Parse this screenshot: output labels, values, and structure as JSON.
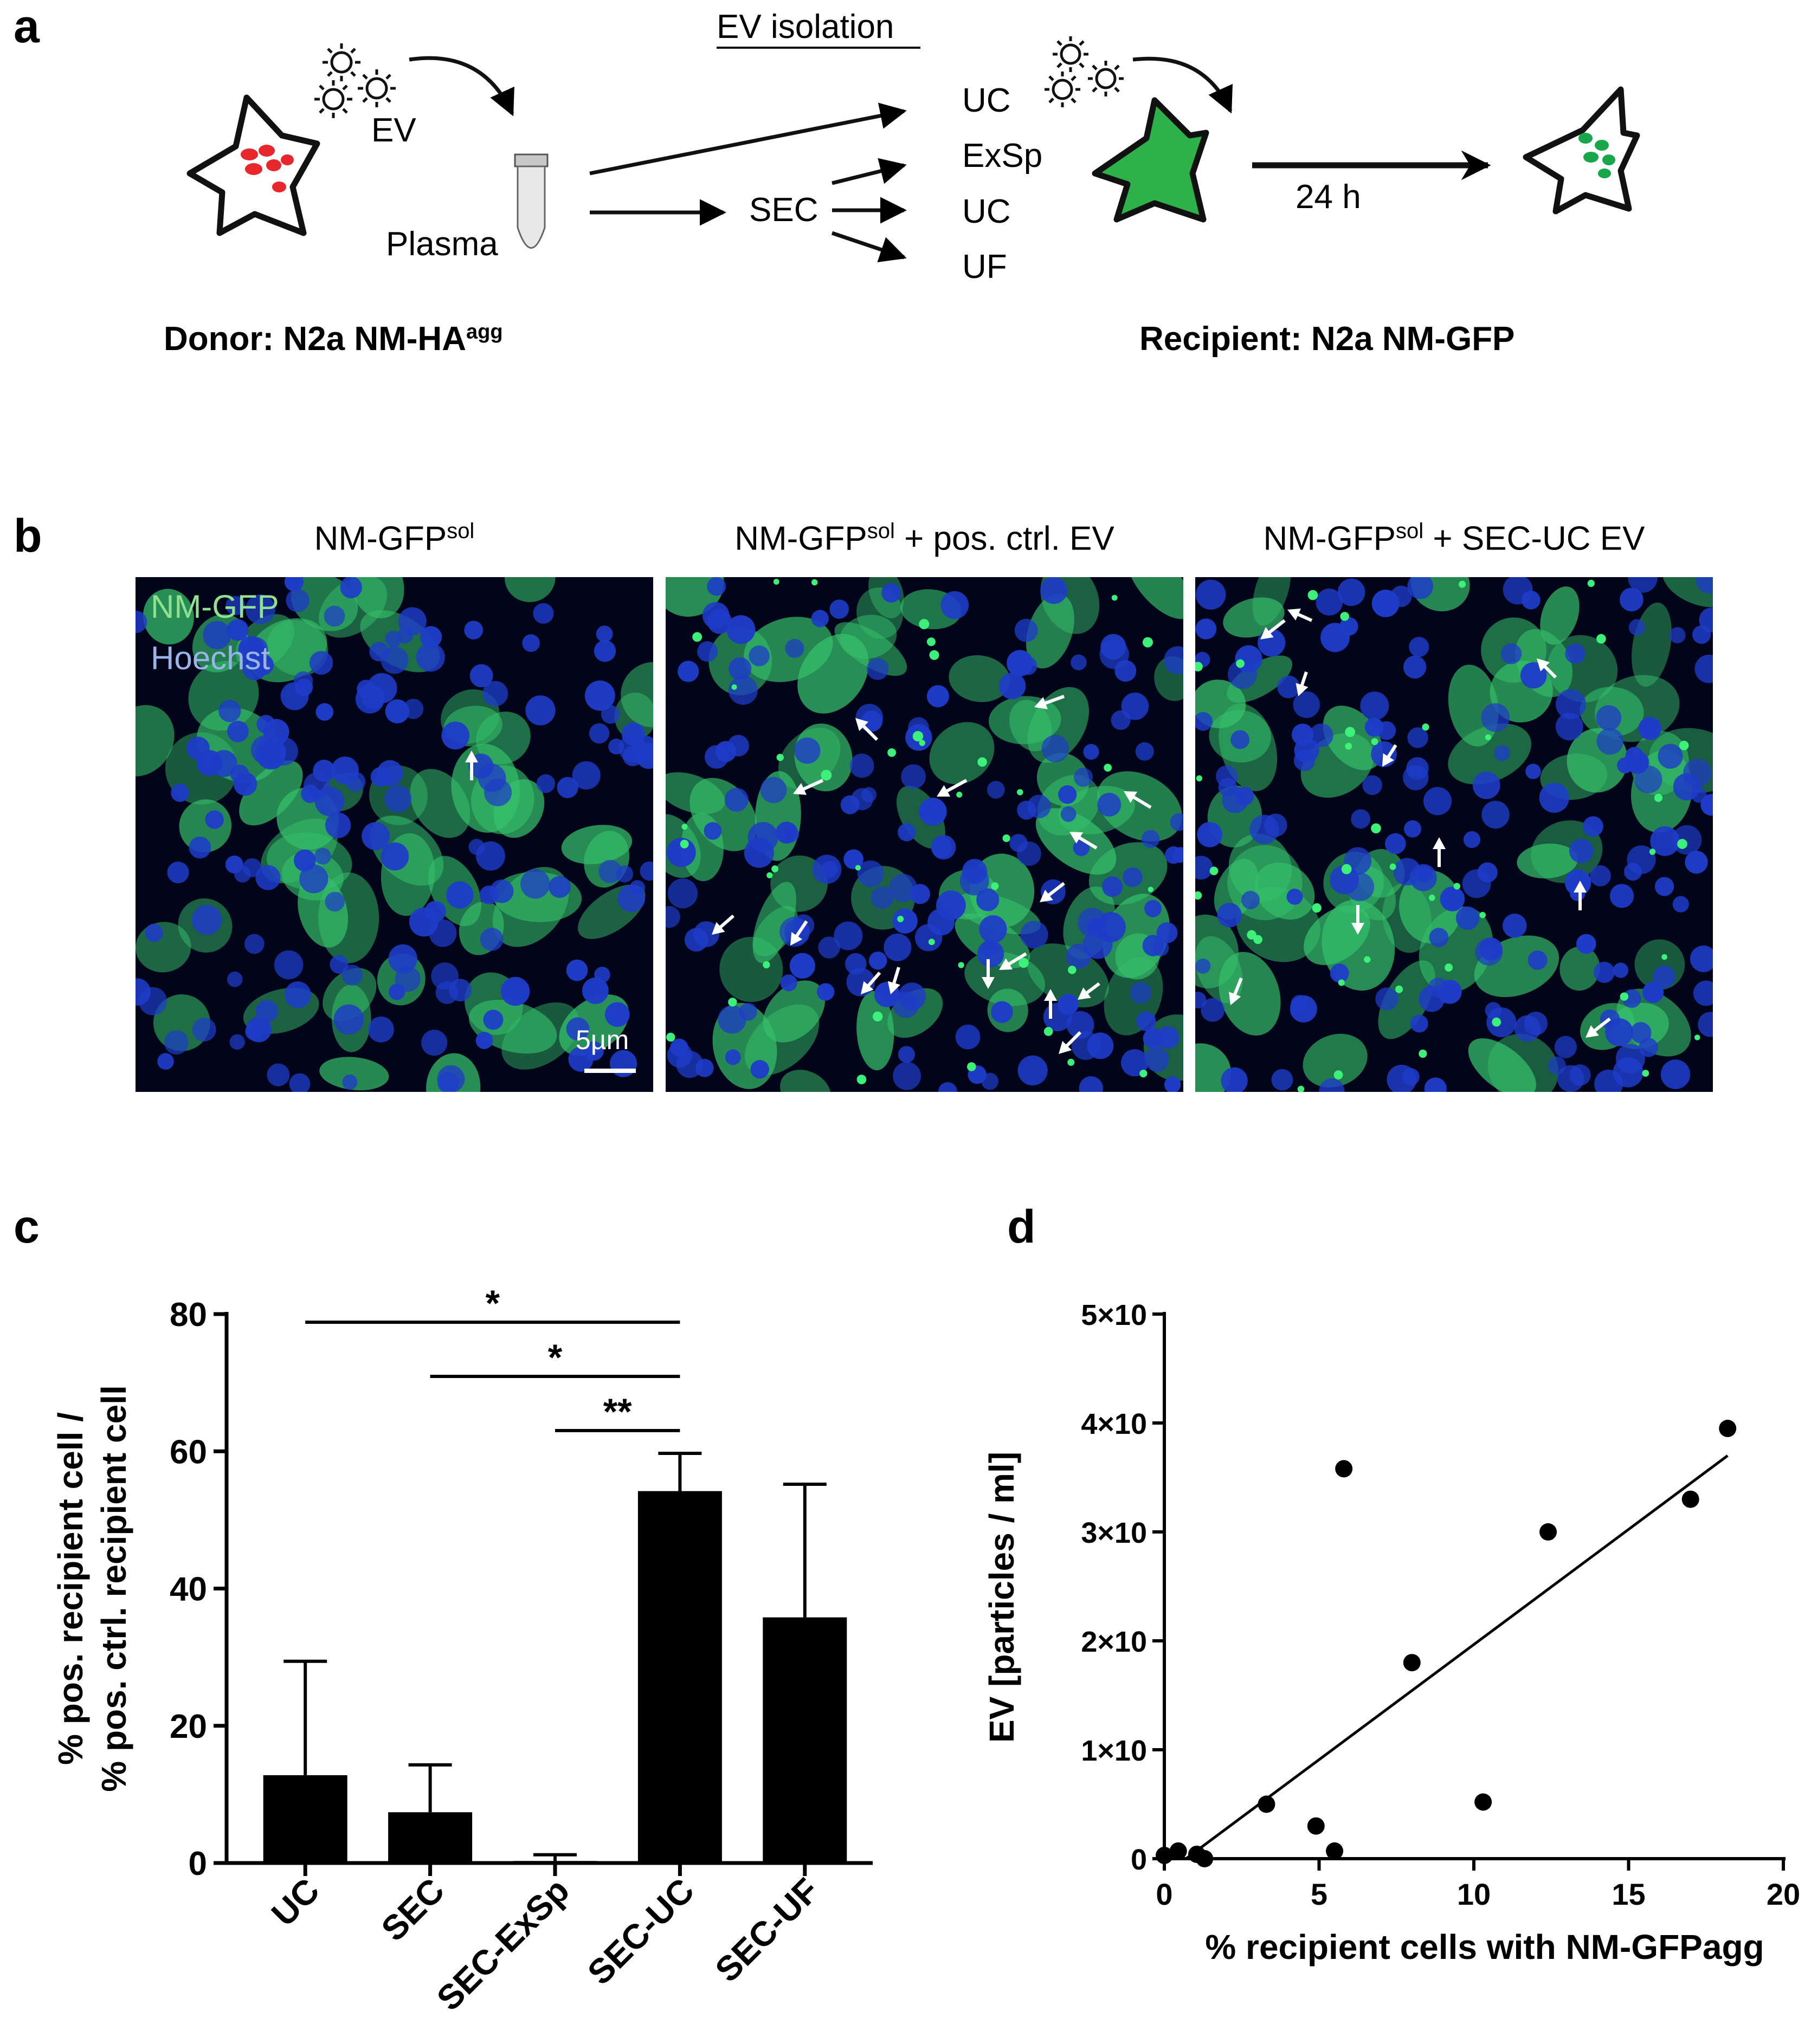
{
  "panel_labels": {
    "a": "a",
    "b": "b",
    "c": "c",
    "d": "d"
  },
  "panel_a": {
    "ev_isolation": "EV isolation",
    "ev_label_donor": "EV",
    "plasma": "Plasma",
    "sec": "SEC",
    "methods": [
      "UC",
      "ExSp",
      "UC",
      "UF"
    ],
    "time": "24 h",
    "donor_label": "Donor: N2a NM-HA",
    "donor_sup": "agg",
    "recipient_label": "Recipient: N2a NM-GFP"
  },
  "panel_b": {
    "titles": [
      {
        "main": "NM-GFP",
        "sup": "sol",
        "suffix": ""
      },
      {
        "main": "NM-GFP",
        "sup": "sol",
        "suffix": " + pos. ctrl. EV"
      },
      {
        "main": "NM-GFP",
        "sup": "sol",
        "suffix": " + SEC-UC EV"
      }
    ],
    "legend_gfp": "NM-GFP",
    "legend_hoechst": "Hoechst",
    "scale_bar": "5µm",
    "colors": {
      "gfp": "#35c06a",
      "hoechst": "#1e3cc8",
      "legend_gfp": "#8fe08f",
      "legend_hoechst": "#9bb4e8"
    }
  },
  "chart_data": [
    {
      "type": "bar",
      "ylabel_line1": "% pos. recipient cell /",
      "ylabel_line2": "% pos. ctrl. recipient cell",
      "categories": [
        "UC",
        "SEC",
        "SEC-ExSp",
        "SEC-UC",
        "SEC-UF"
      ],
      "values": [
        12.8,
        7.4,
        0.3,
        54.2,
        35.8
      ],
      "errors": [
        16.6,
        6.9,
        0.9,
        5.5,
        19.4
      ],
      "ylim": [
        0,
        80
      ],
      "yticks": [
        "0",
        "20",
        "40",
        "60",
        "80"
      ],
      "significance": [
        {
          "from": "UC",
          "to": "SEC-UC",
          "label": "*"
        },
        {
          "from": "SEC",
          "to": "SEC-UC",
          "label": "*"
        },
        {
          "from": "SEC-ExSp",
          "to": "SEC-UC",
          "label": "**"
        }
      ],
      "bar_color": "#000000"
    },
    {
      "type": "scatter",
      "xlabel": "% recipient cells with NM-GFPagg",
      "ylabel": "EV [particles / ml]",
      "xlim": [
        0,
        20
      ],
      "ylim": [
        0,
        5000000000000.0
      ],
      "xticks": [
        "0",
        "5",
        "10",
        "15",
        "20"
      ],
      "yticks": [
        "0",
        "1×10",
        "2×10",
        "3×10",
        "4×10",
        "5×10"
      ],
      "ytick_exponent": "12",
      "points": [
        [
          0.0,
          30000000000.0
        ],
        [
          0.45,
          70000000000.0
        ],
        [
          1.05,
          40000000000.0
        ],
        [
          1.3,
          0.0
        ],
        [
          3.3,
          500000000000.0
        ],
        [
          4.9,
          300000000000.0
        ],
        [
          5.5,
          70000000000.0
        ],
        [
          5.8,
          3580000000000.0
        ],
        [
          8.0,
          1800000000000.0
        ],
        [
          10.3,
          520000000000.0
        ],
        [
          12.4,
          3000000000000.0
        ],
        [
          17.0,
          3300000000000.0
        ],
        [
          18.2,
          3950000000000.0
        ]
      ],
      "fit_line": {
        "x": [
          0.7,
          18.2
        ],
        "y": [
          0.0,
          3700000000000.0
        ]
      }
    }
  ]
}
